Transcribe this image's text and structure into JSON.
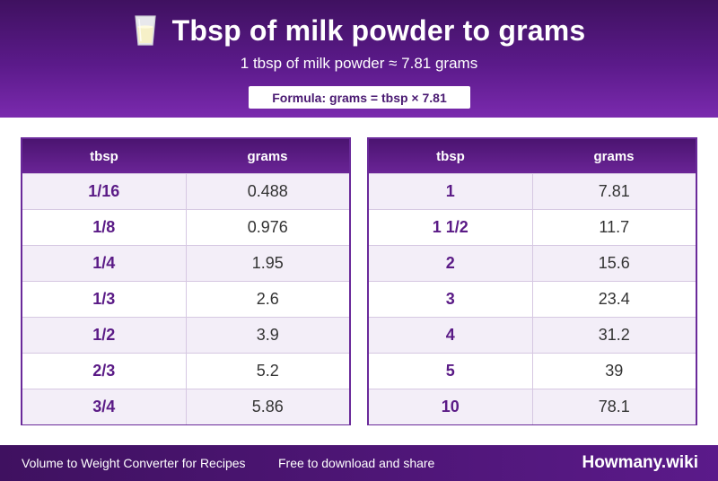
{
  "header": {
    "title": "Tbsp of milk powder to grams",
    "icon": "milk-glass-icon",
    "subtitle": "1 tbsp of milk powder ≈ 7.81 grams",
    "formula": "Formula: grams = tbsp × 7.81"
  },
  "tables": [
    {
      "col1": "tbsp",
      "col2": "grams",
      "rows": [
        {
          "tbsp": "1/16",
          "grams": "0.488"
        },
        {
          "tbsp": "1/8",
          "grams": "0.976"
        },
        {
          "tbsp": "1/4",
          "grams": "1.95"
        },
        {
          "tbsp": "1/3",
          "grams": "2.6"
        },
        {
          "tbsp": "1/2",
          "grams": "3.9"
        },
        {
          "tbsp": "2/3",
          "grams": "5.2"
        },
        {
          "tbsp": "3/4",
          "grams": "5.86"
        }
      ]
    },
    {
      "col1": "tbsp",
      "col2": "grams",
      "rows": [
        {
          "tbsp": "1",
          "grams": "7.81"
        },
        {
          "tbsp": "1 1/2",
          "grams": "11.7"
        },
        {
          "tbsp": "2",
          "grams": "15.6"
        },
        {
          "tbsp": "3",
          "grams": "23.4"
        },
        {
          "tbsp": "4",
          "grams": "31.2"
        },
        {
          "tbsp": "5",
          "grams": "39"
        },
        {
          "tbsp": "10",
          "grams": "78.1"
        }
      ]
    }
  ],
  "footer": {
    "left": "Volume to Weight Converter for Recipes",
    "middle": "Free to download and share",
    "brand": "Howmany.wiki"
  },
  "colors": {
    "accent": "#5b1a8a",
    "row_alt": "#f3eef8"
  }
}
